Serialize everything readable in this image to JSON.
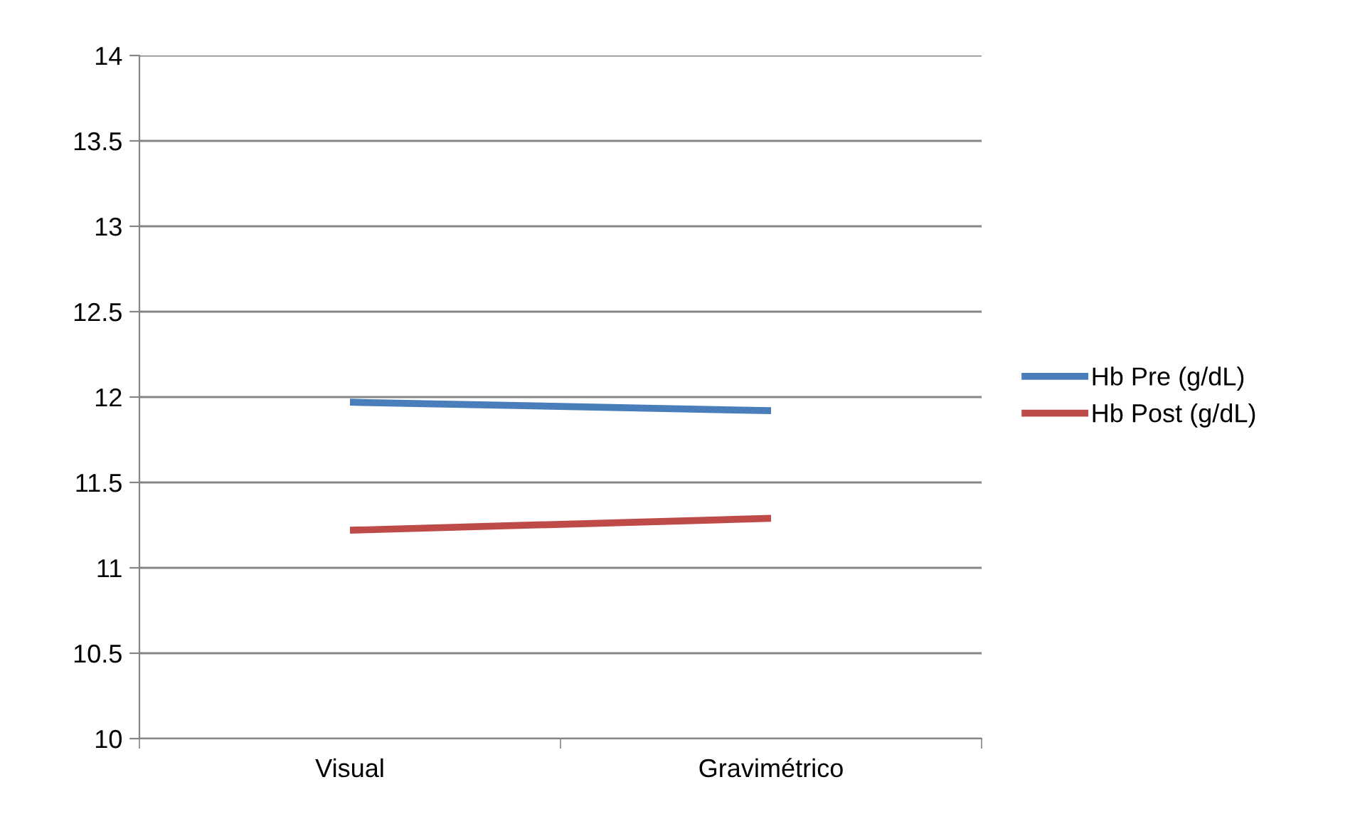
{
  "chart_data": {
    "type": "line",
    "categories": [
      "Visual",
      "Gravimétrico"
    ],
    "series": [
      {
        "name": "Hb Pre (g/dL)",
        "color": "#4a7ebb",
        "values": [
          11.97,
          11.92
        ]
      },
      {
        "name": "Hb Post (g/dL)",
        "color": "#be4b48",
        "values": [
          11.22,
          11.29
        ]
      }
    ],
    "ylim": [
      10,
      14
    ],
    "yticks": [
      10,
      10.5,
      11,
      11.5,
      12,
      12.5,
      13,
      13.5,
      14
    ],
    "grid": "y",
    "legend": "right",
    "marker": "none",
    "line_style": "solid"
  }
}
